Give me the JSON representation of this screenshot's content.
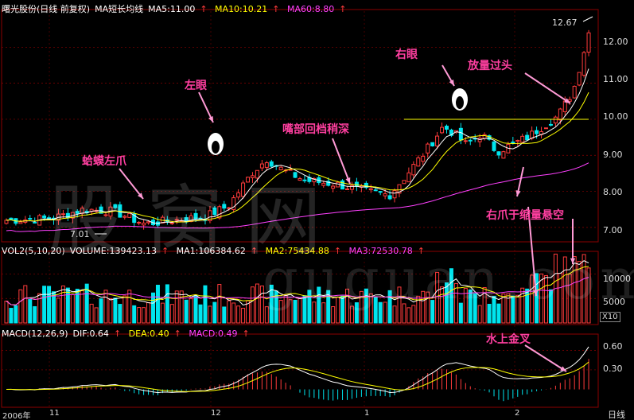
{
  "header": {
    "title": "曙光股份(日线 前复权)",
    "indicator": "MA短长均线",
    "ma5": "MA5:11.00",
    "ma10": "MA10:10.21",
    "ma60": "MA60:8.80"
  },
  "volume_header": {
    "title": "VOL2(5,10,20)",
    "volume": "VOLUME:139423.13",
    "ma1": "MA1:106384.62",
    "ma2": "MA2:75434.88",
    "ma3": "MA3:72530.78"
  },
  "macd_header": {
    "title": "MACD(12,26,9)",
    "dif": "DIF:0.64",
    "dea": "DEA:0.40",
    "macd": "MACD:0.49"
  },
  "annotations": {
    "left_eye": "左眼",
    "right_eye": "右眼",
    "left_claw": "蛤蟆左爪",
    "mouth": "嘴部回档稍深",
    "volume_break": "放量过头",
    "right_claw": "右爪于缩量悬空",
    "golden_cross": "水上金叉"
  },
  "price_labels": {
    "high": "12.67",
    "low": "7.01"
  },
  "period_label": "日线",
  "volume_unit": "X10",
  "watermark": "股窝网",
  "watermark_url": "guguan.com",
  "colors": {
    "up": "#ff3b3b",
    "down": "#00e5ee",
    "ma_white": "#ffffff",
    "ma_yellow": "#ffff00",
    "ma_magenta": "#ff40ff",
    "annotation": "#ff3fa0",
    "grid": "#8b0000"
  },
  "chart_data": [
    {
      "type": "candlestick",
      "title": "曙光股份(日线 前复权)",
      "yticks": [
        "7.00",
        "8.00",
        "9.00",
        "10.00",
        "11.00",
        "12.00"
      ],
      "ylim": [
        6.6,
        13.0
      ],
      "xticks": [
        "2006年",
        "11",
        "12",
        "1",
        "2"
      ],
      "high_marker": 12.67,
      "low_marker": 7.01,
      "neckline": 10.0,
      "series": [
        {
          "name": "MA5",
          "color": "#ffffff"
        },
        {
          "name": "MA10",
          "color": "#ffff00"
        },
        {
          "name": "MA60",
          "color": "#ff40ff"
        }
      ]
    },
    {
      "type": "bar",
      "title": "VOL2(5,10,20)",
      "yticks": [
        "5000",
        "10000"
      ],
      "ylim": [
        0,
        14000
      ],
      "series": [
        {
          "name": "MA1",
          "value": 106384.62
        },
        {
          "name": "MA2",
          "value": 75434.88
        },
        {
          "name": "MA3",
          "value": 72530.78
        }
      ],
      "last_volume": 139423.13
    },
    {
      "type": "line",
      "title": "MACD(12,26,9)",
      "yticks": [
        "0.30",
        "0.60"
      ],
      "ylim": [
        -0.25,
        0.8
      ],
      "series": [
        {
          "name": "DIF",
          "last": 0.64
        },
        {
          "name": "DEA",
          "last": 0.4
        },
        {
          "name": "MACD",
          "last": 0.49
        }
      ]
    }
  ]
}
